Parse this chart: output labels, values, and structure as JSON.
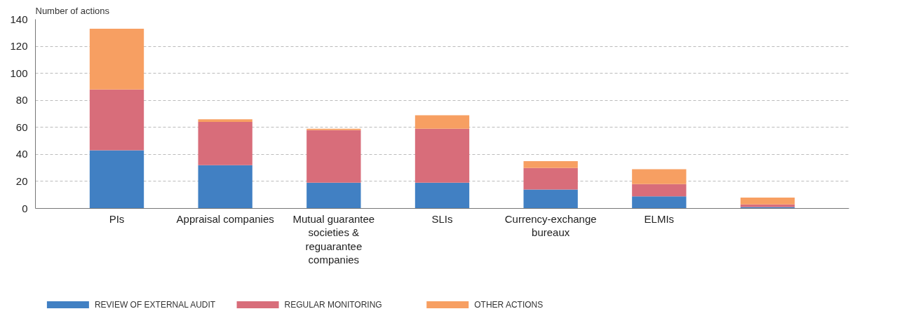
{
  "chart_data": {
    "type": "bar",
    "stacked": true,
    "ylabel": "Number of actions",
    "categories": [
      "PIs",
      "Appraisal companies",
      "Mutual guarantee societies & reguarantee companies",
      "SLIs",
      "Currency-exchange bureaux",
      "ELMIs",
      null
    ],
    "series": [
      {
        "name": "REVIEW OF EXTERNAL AUDIT",
        "color": "#4180c3",
        "values": [
          43,
          32,
          19,
          19,
          14,
          9,
          1
        ]
      },
      {
        "name": "REGULAR MONITORING",
        "color": "#d86d7a",
        "values": [
          45,
          32,
          39,
          40,
          16,
          9,
          2
        ]
      },
      {
        "name": "OTHER ACTIONS",
        "color": "#f79f62",
        "values": [
          45,
          2,
          1,
          10,
          5,
          11,
          5
        ]
      }
    ],
    "ylim": [
      0,
      140
    ],
    "yticks": [
      0,
      20,
      40,
      60,
      80,
      100,
      120,
      140
    ],
    "grid": "y",
    "legend": "bottom"
  }
}
